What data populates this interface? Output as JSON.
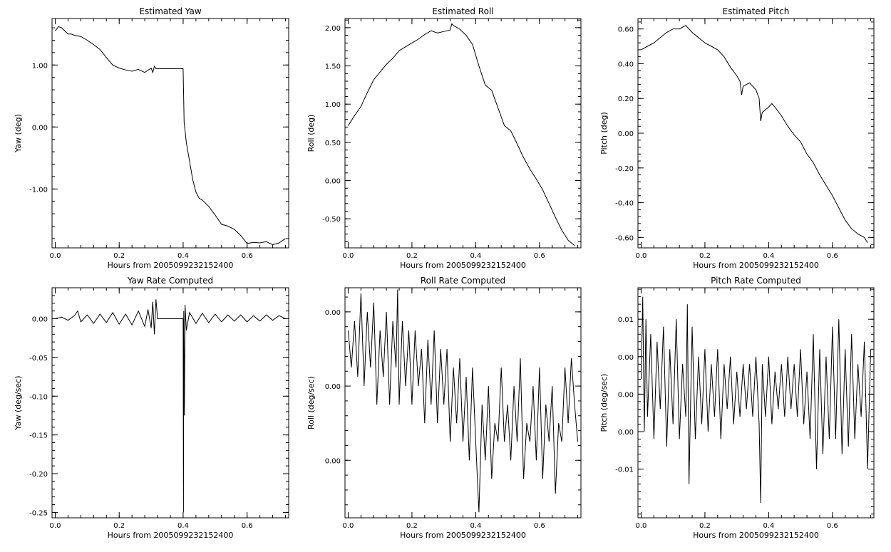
{
  "chart_data": [
    {
      "type": "line",
      "title": "Estimated Yaw",
      "xlabel": "Hours from 2005099232152400",
      "ylabel": "Yaw (deg)",
      "xlim": [
        -0.01,
        0.73
      ],
      "ylim": [
        -1.95,
        1.75
      ],
      "xticks": [
        0.0,
        0.2,
        0.4,
        0.6
      ],
      "xtick_labels": [
        "0.0",
        "0.2",
        "0.4",
        "0.6"
      ],
      "yticks": [
        1.0,
        0.0,
        -1.0
      ],
      "ytick_labels": [
        "1.00",
        "0.00",
        "-1.00"
      ],
      "series": [
        {
          "x": [
            0.0,
            0.01,
            0.02,
            0.03,
            0.04,
            0.05,
            0.06,
            0.08,
            0.1,
            0.12,
            0.14,
            0.16,
            0.18,
            0.2,
            0.22,
            0.24,
            0.26,
            0.28,
            0.3,
            0.305,
            0.31,
            0.315,
            0.4,
            0.4,
            0.403,
            0.41,
            0.42,
            0.43,
            0.44,
            0.45,
            0.46,
            0.48,
            0.5,
            0.52,
            0.54,
            0.56,
            0.58,
            0.6,
            0.62,
            0.64,
            0.66,
            0.68,
            0.7,
            0.72
          ],
          "y": [
            1.55,
            1.62,
            1.6,
            1.55,
            1.5,
            1.5,
            1.48,
            1.46,
            1.4,
            1.33,
            1.25,
            1.12,
            1.0,
            0.95,
            0.92,
            0.9,
            0.93,
            0.88,
            0.95,
            0.88,
            0.98,
            0.94,
            0.94,
            0.94,
            0.08,
            -0.25,
            -0.55,
            -0.85,
            -1.05,
            -1.15,
            -1.18,
            -1.28,
            -1.42,
            -1.57,
            -1.6,
            -1.65,
            -1.75,
            -1.88,
            -1.86,
            -1.87,
            -1.85,
            -1.9,
            -1.87,
            -1.8
          ]
        }
      ]
    },
    {
      "type": "line",
      "title": "Estimated Roll",
      "xlabel": "Hours from 2005099232152400",
      "ylabel": "Roll (deg)",
      "xlim": [
        -0.01,
        0.73
      ],
      "ylim": [
        -0.88,
        2.12
      ],
      "xticks": [
        0.0,
        0.2,
        0.4,
        0.6
      ],
      "xtick_labels": [
        "0.0",
        "0.2",
        "0.4",
        "0.6"
      ],
      "yticks": [
        2.0,
        1.5,
        1.0,
        0.5,
        0.0,
        -0.5
      ],
      "ytick_labels": [
        "2.00",
        "1.50",
        "1.00",
        "0.50",
        "0.00",
        "-0.50"
      ],
      "series": [
        {
          "x": [
            0.0,
            0.02,
            0.04,
            0.06,
            0.08,
            0.1,
            0.12,
            0.14,
            0.16,
            0.18,
            0.2,
            0.22,
            0.24,
            0.26,
            0.28,
            0.3,
            0.32,
            0.325,
            0.33,
            0.35,
            0.37,
            0.39,
            0.41,
            0.43,
            0.45,
            0.47,
            0.49,
            0.51,
            0.53,
            0.55,
            0.57,
            0.59,
            0.61,
            0.63,
            0.65,
            0.67,
            0.69,
            0.71
          ],
          "y": [
            0.72,
            0.85,
            0.97,
            1.15,
            1.32,
            1.42,
            1.52,
            1.6,
            1.7,
            1.75,
            1.8,
            1.85,
            1.91,
            1.96,
            1.93,
            1.95,
            1.97,
            2.05,
            2.03,
            1.98,
            1.9,
            1.78,
            1.5,
            1.25,
            1.18,
            0.95,
            0.72,
            0.65,
            0.48,
            0.3,
            0.15,
            0.02,
            -0.12,
            -0.3,
            -0.48,
            -0.65,
            -0.78,
            -0.85
          ]
        }
      ]
    },
    {
      "type": "line",
      "title": "Estimated Pitch",
      "xlabel": "Hours from 2005099232152400",
      "ylabel": "Pitch (deg)",
      "xlim": [
        -0.01,
        0.73
      ],
      "ylim": [
        -0.66,
        0.66
      ],
      "xticks": [
        0.0,
        0.2,
        0.4,
        0.6
      ],
      "xtick_labels": [
        "0.0",
        "0.2",
        "0.4",
        "0.6"
      ],
      "yticks": [
        0.6,
        0.4,
        0.2,
        0.0,
        -0.2,
        -0.4,
        -0.6
      ],
      "ytick_labels": [
        "0.60",
        "0.40",
        "0.20",
        "0.00",
        "-0.20",
        "-0.40",
        "-0.60"
      ],
      "series": [
        {
          "x": [
            0.0,
            0.02,
            0.04,
            0.06,
            0.08,
            0.1,
            0.12,
            0.14,
            0.15,
            0.16,
            0.18,
            0.2,
            0.22,
            0.24,
            0.26,
            0.28,
            0.3,
            0.31,
            0.315,
            0.32,
            0.34,
            0.36,
            0.37,
            0.375,
            0.38,
            0.4,
            0.41,
            0.42,
            0.44,
            0.46,
            0.48,
            0.5,
            0.52,
            0.54,
            0.56,
            0.58,
            0.6,
            0.62,
            0.64,
            0.66,
            0.68,
            0.7,
            0.71
          ],
          "y": [
            0.48,
            0.5,
            0.52,
            0.55,
            0.58,
            0.6,
            0.6,
            0.62,
            0.6,
            0.58,
            0.55,
            0.52,
            0.5,
            0.48,
            0.44,
            0.38,
            0.33,
            0.3,
            0.22,
            0.27,
            0.29,
            0.25,
            0.2,
            0.07,
            0.12,
            0.15,
            0.17,
            0.15,
            0.1,
            0.04,
            -0.01,
            -0.05,
            -0.12,
            -0.17,
            -0.24,
            -0.3,
            -0.36,
            -0.43,
            -0.5,
            -0.55,
            -0.58,
            -0.6,
            -0.63
          ]
        }
      ]
    },
    {
      "type": "line",
      "title": "Yaw Rate Computed",
      "xlabel": "Hours from 2005099232152400",
      "ylabel": "Yaw (deg/sec)",
      "xlim": [
        -0.01,
        0.73
      ],
      "ylim": [
        -0.257,
        0.04
      ],
      "xticks": [
        0.0,
        0.2,
        0.4,
        0.6
      ],
      "xtick_labels": [
        "0.0",
        "0.2",
        "0.4",
        "0.6"
      ],
      "yticks": [
        0.0,
        -0.05,
        -0.1,
        -0.15,
        -0.2,
        -0.25
      ],
      "ytick_labels": [
        "0.00",
        "-0.05",
        "-0.10",
        "-0.15",
        "-0.20",
        "-0.25"
      ],
      "series": [
        {
          "x": [
            0.0,
            0.02,
            0.04,
            0.06,
            0.07,
            0.08,
            0.1,
            0.12,
            0.14,
            0.16,
            0.18,
            0.2,
            0.22,
            0.24,
            0.26,
            0.28,
            0.29,
            0.3,
            0.305,
            0.31,
            0.315,
            0.32,
            0.4,
            0.401,
            0.402,
            0.404,
            0.406,
            0.41,
            0.42,
            0.44,
            0.46,
            0.48,
            0.5,
            0.52,
            0.54,
            0.56,
            0.58,
            0.6,
            0.62,
            0.64,
            0.66,
            0.68,
            0.7,
            0.72
          ],
          "y": [
            0.0,
            0.002,
            -0.002,
            0.004,
            0.01,
            -0.004,
            0.005,
            -0.006,
            0.006,
            -0.005,
            0.008,
            -0.007,
            0.006,
            -0.008,
            0.01,
            -0.01,
            0.012,
            -0.012,
            0.022,
            -0.02,
            0.025,
            0.0,
            0.0,
            -0.25,
            0.01,
            -0.125,
            0.018,
            -0.015,
            0.008,
            -0.006,
            0.007,
            -0.005,
            0.006,
            -0.004,
            0.005,
            -0.003,
            0.005,
            -0.004,
            0.004,
            -0.003,
            0.005,
            -0.002,
            0.004,
            0.0
          ]
        }
      ]
    },
    {
      "type": "line",
      "title": "Roll Rate Computed",
      "xlabel": "Hours from 2005099232152400",
      "ylabel": "Roll (deg/sec)",
      "xlim": [
        -0.01,
        0.73
      ],
      "ylim": [
        -0.00071,
        0.00053
      ],
      "xticks": [
        0.0,
        0.2,
        0.4,
        0.6
      ],
      "xtick_labels": [
        "0.0",
        "0.2",
        "0.4",
        "0.6"
      ],
      "yticks": [
        0.0004,
        0.0,
        -0.0004
      ],
      "ytick_labels": [
        "0.00",
        "0.00",
        "0.00"
      ],
      "series": [
        {
          "x": [
            0.0,
            0.01,
            0.02,
            0.03,
            0.04,
            0.05,
            0.06,
            0.07,
            0.08,
            0.09,
            0.1,
            0.11,
            0.12,
            0.13,
            0.14,
            0.15,
            0.155,
            0.16,
            0.17,
            0.18,
            0.19,
            0.2,
            0.21,
            0.22,
            0.23,
            0.24,
            0.25,
            0.26,
            0.27,
            0.28,
            0.29,
            0.3,
            0.31,
            0.32,
            0.33,
            0.34,
            0.35,
            0.36,
            0.37,
            0.38,
            0.39,
            0.4,
            0.41,
            0.42,
            0.43,
            0.44,
            0.45,
            0.46,
            0.47,
            0.48,
            0.49,
            0.5,
            0.51,
            0.52,
            0.53,
            0.54,
            0.55,
            0.56,
            0.57,
            0.58,
            0.59,
            0.6,
            0.61,
            0.62,
            0.63,
            0.64,
            0.65,
            0.66,
            0.67,
            0.68,
            0.69,
            0.7,
            0.71,
            0.72
          ],
          "y": [
            0.0003,
            0.0001,
            0.00035,
            5e-05,
            0.0005,
            0.0,
            0.0004,
            0.0001,
            0.00045,
            -0.0001,
            0.0003,
            5e-05,
            0.0004,
            -0.0001,
            0.00035,
            0.0001,
            0.00052,
            -0.0001,
            0.00035,
            0.0,
            0.0003,
            -0.0001,
            0.0003,
            0.0,
            0.0002,
            -0.0002,
            0.00025,
            -0.0001,
            0.0003,
            -0.0002,
            0.0002,
            -0.0001,
            0.0002,
            -0.0003,
            0.0001,
            -0.0002,
            0.00015,
            -0.0003,
            5e-05,
            -0.0004,
            0.0001,
            -0.0003,
            -0.00068,
            -0.0001,
            -0.0004,
            0.0,
            -0.0005,
            -0.0002,
            -0.0003,
            0.0001,
            -0.0003,
            -0.0001,
            -0.0004,
            0.0,
            -0.0003,
            0.00015,
            -0.0005,
            -0.0002,
            -0.0003,
            0.0,
            -0.0004,
            0.0001,
            -0.0005,
            -0.0001,
            -0.0003,
            0.0,
            -0.00058,
            -0.0002,
            -0.0003,
            0.0001,
            -0.0002,
            0.00015,
            -0.0001,
            -0.0003
          ]
        }
      ]
    },
    {
      "type": "line",
      "title": "Pitch Rate Computed",
      "xlabel": "Hours from 2005099232152400",
      "ylabel": "Pitch (deg/sec)",
      "xlim": [
        -0.01,
        0.73
      ],
      "ylim": [
        -0.0165,
        0.0142
      ],
      "xticks": [
        0.0,
        0.2,
        0.4,
        0.6
      ],
      "xtick_labels": [
        "0.0",
        "0.2",
        "0.4",
        "0.6"
      ],
      "yticks": [
        0.01,
        0.005,
        0.0,
        -0.005,
        -0.01
      ],
      "ytick_labels": [
        "0.01",
        "0.00",
        "0.00",
        "0.00",
        "-0.01"
      ],
      "series": [
        {
          "x": [
            0.0,
            0.005,
            0.01,
            0.015,
            0.02,
            0.03,
            0.04,
            0.05,
            0.06,
            0.07,
            0.08,
            0.09,
            0.1,
            0.11,
            0.12,
            0.13,
            0.14,
            0.145,
            0.15,
            0.16,
            0.17,
            0.18,
            0.19,
            0.2,
            0.21,
            0.22,
            0.23,
            0.24,
            0.25,
            0.26,
            0.27,
            0.28,
            0.29,
            0.3,
            0.31,
            0.32,
            0.33,
            0.34,
            0.35,
            0.36,
            0.37,
            0.375,
            0.38,
            0.39,
            0.4,
            0.41,
            0.42,
            0.43,
            0.44,
            0.45,
            0.46,
            0.47,
            0.48,
            0.49,
            0.5,
            0.51,
            0.52,
            0.53,
            0.54,
            0.55,
            0.56,
            0.57,
            0.58,
            0.59,
            0.6,
            0.61,
            0.62,
            0.63,
            0.64,
            0.65,
            0.66,
            0.67,
            0.68,
            0.69,
            0.7,
            0.71,
            0.72
          ],
          "y": [
            0.002,
            0.013,
            -0.005,
            0.01,
            -0.003,
            0.008,
            -0.006,
            0.007,
            -0.002,
            0.009,
            -0.007,
            0.006,
            -0.004,
            0.01,
            -0.006,
            0.004,
            -0.003,
            0.012,
            -0.012,
            0.009,
            -0.006,
            0.005,
            -0.004,
            0.006,
            -0.005,
            0.004,
            -0.003,
            0.006,
            -0.006,
            0.004,
            -0.002,
            0.005,
            -0.004,
            0.003,
            -0.003,
            0.004,
            -0.002,
            0.004,
            -0.003,
            0.005,
            -0.004,
            -0.0145,
            0.004,
            -0.003,
            0.005,
            -0.004,
            0.003,
            -0.002,
            0.004,
            -0.003,
            0.005,
            -0.002,
            0.004,
            -0.003,
            0.006,
            -0.004,
            0.003,
            -0.006,
            0.008,
            -0.01,
            0.006,
            -0.008,
            0.005,
            -0.006,
            0.009,
            -0.006,
            0.01,
            -0.008,
            0.006,
            -0.007,
            0.008,
            -0.006,
            0.004,
            -0.003,
            0.007,
            -0.01,
            0.006
          ]
        }
      ]
    }
  ]
}
